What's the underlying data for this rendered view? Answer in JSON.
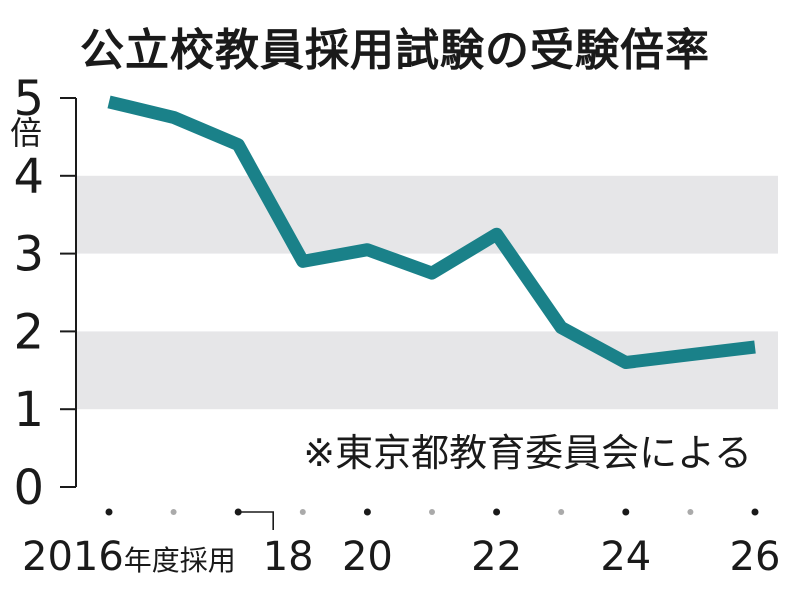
{
  "chart_data": {
    "type": "line",
    "title": "公立校教員採用試験の受験倍率",
    "y_unit": "倍",
    "note": "※東京都教育委員会による",
    "ylim": [
      0,
      5
    ],
    "y_ticks": [
      0,
      1,
      2,
      3,
      4,
      5
    ],
    "grid": "alternating horizontal bands",
    "x": [
      2016,
      2017,
      2018,
      2019,
      2020,
      2021,
      2022,
      2023,
      2024,
      2025,
      2026
    ],
    "x_tick_labels": [
      {
        "x": 2016,
        "label": "2016",
        "suffix": "年度採用"
      },
      {
        "x": 2018,
        "label": "18"
      },
      {
        "x": 2020,
        "label": "20"
      },
      {
        "x": 2022,
        "label": "22"
      },
      {
        "x": 2024,
        "label": "24"
      },
      {
        "x": 2026,
        "label": "26"
      }
    ],
    "series": [
      {
        "values": [
          4.95,
          4.75,
          4.4,
          2.9,
          3.05,
          2.75,
          3.25,
          2.05,
          1.6,
          1.7,
          1.8
        ]
      }
    ],
    "colors": {
      "line": "#1a8189",
      "band": "#e6e6e8",
      "text": "#1a1a1a",
      "dot_major": "#1a1a1a",
      "dot_minor": "#aaaaaa"
    }
  }
}
